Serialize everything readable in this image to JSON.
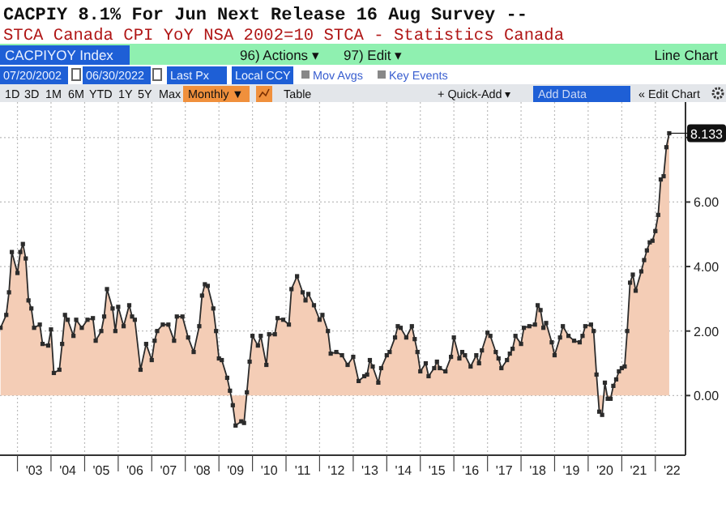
{
  "chart_data": {
    "type": "area",
    "title": "CACPIY 8.1% For Jun Next Release 16 Aug Survey --",
    "subtitle": "STCA Canada CPI YoY NSA 2002=10 STCA - Statistics Canada",
    "annotations": [
      "CACPIYOY Index",
      "96) Actions ▾",
      "97) Edit ▾",
      "Line Chart",
      "07/20/2002",
      "06/30/2022",
      "Last Px",
      "Local CCY",
      "Mov Avgs",
      "Key Events",
      "1D",
      "3D",
      "1M",
      "6M",
      "YTD",
      "1Y",
      "5Y",
      "Max",
      "Monthly ▼",
      "Table",
      "+ Quick-Add ▾",
      "Add Data",
      "« Edit Chart",
      {
        "text": "8.133",
        "x": "2022-06",
        "y": 8.133
      }
    ],
    "series": [
      {
        "color": "#f4cdb6",
        "x": [
          "2002-07",
          "2002-09",
          "2002-10",
          "2002-11",
          "2003-01",
          "2003-02",
          "2003-03",
          "2003-04",
          "2003-05",
          "2003-06",
          "2003-07",
          "2003-09",
          "2003-10",
          "2003-12",
          "2004-01",
          "2004-02",
          "2004-04",
          "2004-05",
          "2004-06",
          "2004-07",
          "2004-09",
          "2004-10",
          "2004-12",
          "2005-02",
          "2005-04",
          "2005-05",
          "2005-07",
          "2005-08",
          "2005-09",
          "2005-11",
          "2005-12",
          "2006-01",
          "2006-03",
          "2006-05",
          "2006-06",
          "2006-07",
          "2006-09",
          "2006-11",
          "2007-01",
          "2007-02",
          "2007-03",
          "2007-05",
          "2007-07",
          "2007-09",
          "2007-10",
          "2007-12",
          "2008-02",
          "2008-04",
          "2008-06",
          "2008-07",
          "2008-08",
          "2008-09",
          "2008-11",
          "2008-12",
          "2009-01",
          "2009-02",
          "2009-04",
          "2009-05",
          "2009-06",
          "2009-07",
          "2009-09",
          "2009-10",
          "2009-11",
          "2009-12",
          "2010-01",
          "2010-03",
          "2010-04",
          "2010-06",
          "2010-07",
          "2010-09",
          "2010-10",
          "2010-12",
          "2011-02",
          "2011-03",
          "2011-05",
          "2011-07",
          "2011-08",
          "2011-09",
          "2011-11",
          "2012-01",
          "2012-02",
          "2012-04",
          "2012-05",
          "2012-07",
          "2012-09",
          "2012-11",
          "2013-01",
          "2013-03",
          "2013-05",
          "2013-06",
          "2013-07",
          "2013-08",
          "2013-10",
          "2013-11",
          "2014-01",
          "2014-02",
          "2014-04",
          "2014-05",
          "2014-06",
          "2014-08",
          "2014-10",
          "2014-11",
          "2014-12",
          "2015-01",
          "2015-03",
          "2015-04",
          "2015-06",
          "2015-07",
          "2015-08",
          "2015-10",
          "2015-12",
          "2016-01",
          "2016-03",
          "2016-04",
          "2016-05",
          "2016-07",
          "2016-09",
          "2016-10",
          "2016-11",
          "2017-01",
          "2017-02",
          "2017-04",
          "2017-05",
          "2017-06",
          "2017-08",
          "2017-09",
          "2017-10",
          "2017-11",
          "2018-01",
          "2018-02",
          "2018-04",
          "2018-06",
          "2018-07",
          "2018-08",
          "2018-09",
          "2018-10",
          "2018-12",
          "2019-01",
          "2019-03",
          "2019-04",
          "2019-06",
          "2019-08",
          "2019-10",
          "2019-11",
          "2019-12",
          "2020-02",
          "2020-03",
          "2020-04",
          "2020-05",
          "2020-06",
          "2020-07",
          "2020-08",
          "2020-09",
          "2020-10",
          "2020-11",
          "2020-12",
          "2021-01",
          "2021-02",
          "2021-03",
          "2021-04",
          "2021-05",
          "2021-06",
          "2021-08",
          "2021-09",
          "2021-10",
          "2021-11",
          "2021-12",
          "2022-01",
          "2022-02",
          "2022-03",
          "2022-04",
          "2022-05",
          "2022-06"
        ],
        "values": [
          2.1,
          2.5,
          3.2,
          4.45,
          3.8,
          4.45,
          4.7,
          4.25,
          2.95,
          2.7,
          2.1,
          2.2,
          1.6,
          1.55,
          2.05,
          0.7,
          0.8,
          1.6,
          2.5,
          2.35,
          1.85,
          2.35,
          2.1,
          2.35,
          2.4,
          1.7,
          2.0,
          2.45,
          3.3,
          2.7,
          2.0,
          2.75,
          2.15,
          2.8,
          2.45,
          2.35,
          0.8,
          1.6,
          1.1,
          1.7,
          2.0,
          2.2,
          2.2,
          1.7,
          2.45,
          2.45,
          1.8,
          1.35,
          2.15,
          3.1,
          3.45,
          3.4,
          2.7,
          2.0,
          1.15,
          1.1,
          0.55,
          0.15,
          -0.3,
          -0.93,
          -0.8,
          -0.85,
          0.1,
          1.05,
          1.85,
          1.55,
          1.85,
          0.95,
          1.9,
          1.9,
          2.4,
          2.35,
          2.2,
          3.3,
          3.7,
          3.2,
          2.95,
          3.15,
          2.8,
          2.35,
          2.5,
          2.0,
          1.3,
          1.35,
          1.25,
          0.95,
          1.2,
          0.45,
          0.6,
          0.65,
          1.1,
          0.9,
          0.4,
          0.85,
          1.25,
          1.35,
          1.8,
          2.15,
          2.1,
          1.8,
          2.15,
          1.75,
          1.35,
          0.75,
          1.0,
          0.6,
          0.85,
          1.05,
          0.85,
          0.75,
          1.2,
          1.8,
          1.15,
          1.35,
          1.25,
          0.9,
          1.25,
          1.0,
          1.4,
          1.95,
          1.85,
          1.35,
          1.15,
          0.85,
          1.1,
          1.3,
          1.45,
          1.85,
          1.6,
          2.1,
          2.15,
          2.2,
          2.8,
          2.65,
          2.1,
          2.25,
          1.65,
          1.25,
          1.8,
          2.15,
          1.85,
          1.7,
          1.65,
          1.85,
          2.15,
          2.2,
          2.0,
          0.65,
          -0.5,
          -0.6,
          0.4,
          -0.1,
          -0.1,
          0.3,
          0.5,
          0.75,
          0.85,
          0.9,
          2.0,
          3.5,
          3.75,
          3.25,
          3.85,
          4.2,
          4.5,
          4.75,
          4.8,
          5.1,
          5.6,
          6.7,
          6.8,
          7.7,
          8.133
        ]
      }
    ],
    "marker": "square",
    "grid": true,
    "xlim": [
      "2002-06-25",
      "2022-11-25"
    ],
    "xticks": [
      {
        "value": "2003",
        "label": null
      },
      {
        "value": "2004",
        "label": null
      },
      {
        "value": "2005",
        "label": null
      },
      {
        "value": "2006",
        "label": null
      },
      {
        "value": "2007",
        "label": null
      },
      {
        "value": "2008",
        "label": null
      },
      {
        "value": "2009",
        "label": null
      },
      {
        "value": "2010",
        "label": null
      },
      {
        "value": "2011",
        "label": null
      },
      {
        "value": "2012",
        "label": null
      },
      {
        "value": "2013",
        "label": null
      },
      {
        "value": "2014",
        "label": null
      },
      {
        "value": "2015",
        "label": null
      },
      {
        "value": "2016",
        "label": null
      },
      {
        "value": "2017",
        "label": null
      },
      {
        "value": "2018",
        "label": null
      },
      {
        "value": "2019",
        "label": null
      },
      {
        "value": "2020",
        "label": null
      },
      {
        "value": "2021",
        "label": null
      },
      {
        "value": "2022",
        "label": null
      },
      {
        "value": "2003-07",
        "label": "'03"
      },
      {
        "value": "2004-07",
        "label": "'04"
      },
      {
        "value": "2005-07",
        "label": "'05"
      },
      {
        "value": "2006-07",
        "label": "'06"
      },
      {
        "value": "2007-07",
        "label": "'07"
      },
      {
        "value": "2008-07",
        "label": "'08"
      },
      {
        "value": "2009-07",
        "label": "'09"
      },
      {
        "value": "2010-07",
        "label": "'10"
      },
      {
        "value": "2011-07",
        "label": "'11"
      },
      {
        "value": "2012-07",
        "label": "'12"
      },
      {
        "value": "2013-07",
        "label": "'13"
      },
      {
        "value": "2014-07",
        "label": "'14"
      },
      {
        "value": "2015-07",
        "label": "'15"
      },
      {
        "value": "2016-07",
        "label": "'16"
      },
      {
        "value": "2017-07",
        "label": "'17"
      },
      {
        "value": "2018-07",
        "label": "'18"
      },
      {
        "value": "2019-07",
        "label": "'19"
      },
      {
        "value": "2020-07",
        "label": "'20"
      },
      {
        "value": "2021-07",
        "label": "'21"
      },
      {
        "value": "2022-07",
        "label": "'22"
      }
    ],
    "ylim": [
      -1.85,
      9.1
    ],
    "yticks": [
      {
        "value": 0,
        "label": "0.00"
      },
      {
        "value": 2,
        "label": "2.00"
      },
      {
        "value": 4,
        "label": "4.00"
      },
      {
        "value": 6,
        "label": "6.00"
      },
      {
        "value": 8,
        "label": null
      }
    ]
  }
}
